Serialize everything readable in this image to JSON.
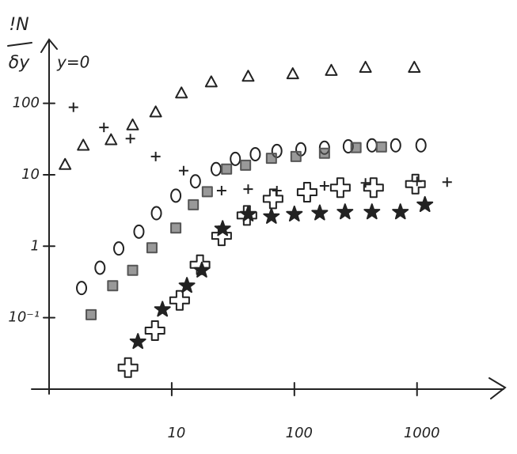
{
  "chart_data": {
    "type": "scatter",
    "ylabel": {
      "numerator": "!N",
      "denominator": "δy"
    },
    "annotation": "y=0",
    "xscale": "log",
    "yscale": "log",
    "xlim": [
      1,
      5000
    ],
    "ylim": [
      0.01,
      800
    ],
    "xticks": [
      10,
      100,
      1000
    ],
    "yticks": [
      {
        "value": 0.1,
        "label": "10⁻¹"
      },
      1,
      10,
      100
    ],
    "grid": false,
    "series": [
      {
        "marker": "triangle",
        "color": "#222",
        "x": [
          1.35,
          1.9,
          3.2,
          4.8,
          7.4,
          12,
          21,
          42,
          97,
          200,
          380,
          950
        ],
        "values": [
          14,
          26,
          31,
          50,
          76,
          140,
          200,
          240,
          260,
          290,
          320,
          320
        ]
      },
      {
        "marker": "plus",
        "color": "#222",
        "x": [
          1.58,
          2.8,
          4.6,
          7.4,
          12.5,
          25.5,
          42,
          72,
          176,
          380,
          1000,
          1760
        ],
        "values": [
          88,
          46,
          32,
          18,
          11.4,
          6,
          6.3,
          6,
          7,
          7.7,
          8.1,
          7.9
        ]
      },
      {
        "marker": "circle",
        "color": "#222",
        "x": [
          1.84,
          2.6,
          3.7,
          5.4,
          7.5,
          10.8,
          15.6,
          23,
          33,
          48,
          72,
          113,
          176,
          275,
          429,
          670,
          1077
        ],
        "values": [
          0.26,
          0.5,
          0.93,
          1.6,
          2.9,
          5.1,
          8.1,
          12,
          16.7,
          19.4,
          21.5,
          22.7,
          23.9,
          25,
          25.8,
          25.8,
          25.8
        ]
      },
      {
        "marker": "square",
        "color": "#555",
        "x": [
          2.2,
          3.3,
          4.8,
          6.9,
          10.8,
          15,
          19.5,
          28,
          40,
          65,
          103,
          176,
          318,
          513
        ],
        "values": [
          0.11,
          0.28,
          0.46,
          0.95,
          1.8,
          3.8,
          5.8,
          12,
          13.6,
          17,
          18,
          20,
          24,
          24.5
        ]
      },
      {
        "marker": "cross",
        "color": "#222",
        "x": [
          4.4,
          7.3,
          11.6,
          17,
          25.5,
          41,
          67,
          127,
          237,
          442,
          970
        ],
        "values": [
          0.02,
          0.066,
          0.175,
          0.55,
          1.4,
          2.7,
          4.6,
          5.7,
          6.6,
          6.6,
          7.4
        ]
      },
      {
        "marker": "star",
        "color": "#222",
        "x": [
          5.3,
          8.4,
          13.3,
          17.6,
          26,
          42,
          65,
          100,
          161,
          259,
          429,
          732,
          1160
        ],
        "values": [
          0.046,
          0.13,
          0.28,
          0.46,
          1.75,
          2.8,
          2.6,
          2.8,
          2.9,
          3.0,
          3.0,
          3.0,
          3.8
        ]
      }
    ]
  }
}
